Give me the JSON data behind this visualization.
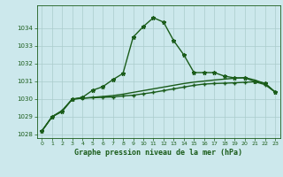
{
  "title": "Graphe pression niveau de la mer (hPa)",
  "xlabel_vals": [
    0,
    1,
    2,
    3,
    4,
    5,
    6,
    7,
    8,
    9,
    10,
    11,
    12,
    13,
    14,
    15,
    16,
    17,
    18,
    19,
    20,
    21,
    22,
    23
  ],
  "ylim": [
    1027.8,
    1035.3
  ],
  "xlim": [
    -0.5,
    23.5
  ],
  "yticks": [
    1028,
    1029,
    1030,
    1031,
    1032,
    1033,
    1034
  ],
  "bg_color": "#cce8ec",
  "grid_color": "#aacccc",
  "line_color": "#1a5c1a",
  "line1": [
    1028.2,
    1029.0,
    1029.3,
    1030.0,
    1030.1,
    1030.5,
    1030.7,
    1031.1,
    1031.45,
    1033.5,
    1034.1,
    1034.6,
    1034.35,
    1033.3,
    1032.5,
    1031.5,
    1031.5,
    1031.5,
    1031.3,
    1031.2,
    1031.2,
    1031.0,
    1030.9,
    1030.4
  ],
  "line2": [
    1028.2,
    1029.0,
    1029.35,
    1030.0,
    1030.05,
    1030.08,
    1030.1,
    1030.12,
    1030.18,
    1030.22,
    1030.3,
    1030.38,
    1030.48,
    1030.58,
    1030.68,
    1030.78,
    1030.85,
    1030.88,
    1030.9,
    1030.92,
    1030.95,
    1030.98,
    1030.82,
    1030.4
  ],
  "line3": [
    1028.2,
    1029.0,
    1029.35,
    1030.0,
    1030.05,
    1030.1,
    1030.15,
    1030.2,
    1030.28,
    1030.38,
    1030.48,
    1030.58,
    1030.68,
    1030.78,
    1030.88,
    1030.96,
    1031.02,
    1031.08,
    1031.13,
    1031.18,
    1031.22,
    1031.08,
    1030.88,
    1030.4
  ],
  "marker_size": 2.8,
  "linewidth": 1.0,
  "title_fontsize": 6.0,
  "tick_fontsize": 5.0
}
